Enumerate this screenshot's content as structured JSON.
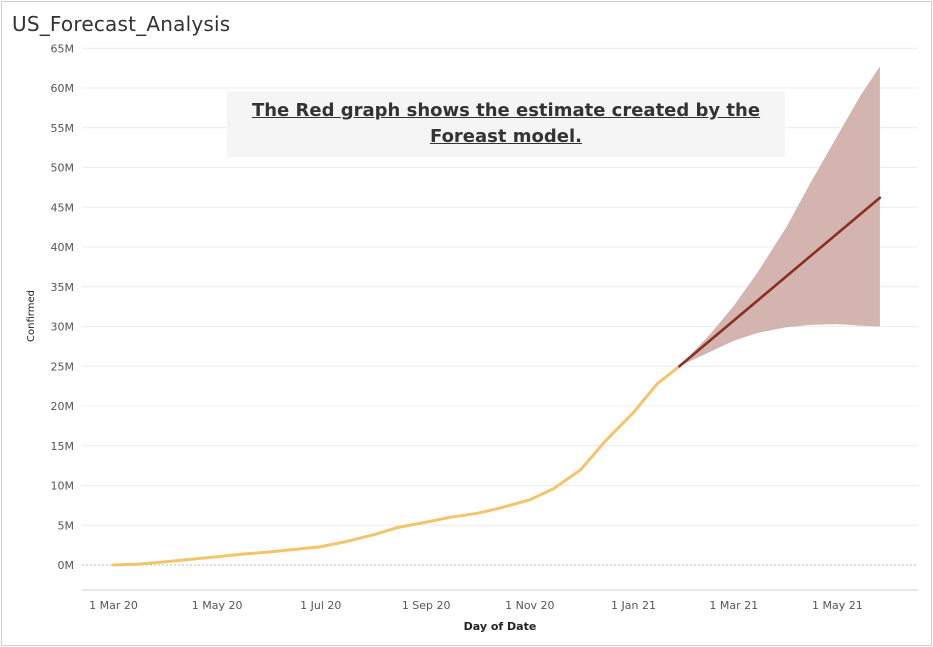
{
  "title": "US_Forecast_Analysis",
  "annotation": {
    "line1": "The Red graph shows the estimate created by the",
    "line2": "Foreast model."
  },
  "colors": {
    "actual": "#f2c56b",
    "forecast": "#8b2f24",
    "band": "#d2b0aa",
    "grid": "#ececec"
  },
  "chart_data": {
    "type": "line",
    "xlabel": "Day of Date",
    "ylabel": "Confirmed",
    "x_ticks": [
      "1 Mar 20",
      "1 May 20",
      "1 Jul 20",
      "1 Sep 20",
      "1 Nov 20",
      "1 Jan 21",
      "1 Mar 21",
      "1 May 21"
    ],
    "y_ticks": [
      "65M",
      "60M",
      "55M",
      "50M",
      "45M",
      "40M",
      "35M",
      "30M",
      "25M",
      "20M",
      "15M",
      "10M",
      "5M",
      "0M"
    ],
    "ylim": [
      -3000000,
      65000000
    ],
    "series": [
      {
        "kind": "actual",
        "points": [
          [
            "2020-03-01",
            0
          ],
          [
            "2020-03-15",
            100000
          ],
          [
            "2020-04-01",
            400000
          ],
          [
            "2020-04-15",
            700000
          ],
          [
            "2020-05-01",
            1050000
          ],
          [
            "2020-05-15",
            1350000
          ],
          [
            "2020-06-01",
            1650000
          ],
          [
            "2020-06-15",
            1950000
          ],
          [
            "2020-07-01",
            2300000
          ],
          [
            "2020-07-15",
            2900000
          ],
          [
            "2020-08-01",
            3800000
          ],
          [
            "2020-08-15",
            4700000
          ],
          [
            "2020-09-01",
            5400000
          ],
          [
            "2020-09-15",
            6000000
          ],
          [
            "2020-10-01",
            6500000
          ],
          [
            "2020-10-15",
            7200000
          ],
          [
            "2020-11-01",
            8200000
          ],
          [
            "2020-11-15",
            9600000
          ],
          [
            "2020-12-01",
            12000000
          ],
          [
            "2020-12-15",
            15500000
          ],
          [
            "2021-01-01",
            19200000
          ],
          [
            "2021-01-15",
            22800000
          ],
          [
            "2021-01-28",
            25000000
          ]
        ]
      },
      {
        "kind": "forecast",
        "points": [
          [
            "2021-01-28",
            25000000
          ],
          [
            "2021-05-26",
            46200000
          ]
        ]
      },
      {
        "kind": "band",
        "upper": [
          [
            "2021-01-28",
            25000000
          ],
          [
            "2021-02-15",
            29000000
          ],
          [
            "2021-03-01",
            32600000
          ],
          [
            "2021-03-15",
            36800000
          ],
          [
            "2021-04-01",
            42500000
          ],
          [
            "2021-04-15",
            48000000
          ],
          [
            "2021-05-01",
            54000000
          ],
          [
            "2021-05-15",
            59200000
          ],
          [
            "2021-05-26",
            62700000
          ]
        ],
        "lower": [
          [
            "2021-01-28",
            25000000
          ],
          [
            "2021-02-15",
            26800000
          ],
          [
            "2021-03-01",
            28200000
          ],
          [
            "2021-03-15",
            29200000
          ],
          [
            "2021-04-01",
            29900000
          ],
          [
            "2021-04-15",
            30200000
          ],
          [
            "2021-05-01",
            30300000
          ],
          [
            "2021-05-15",
            30100000
          ],
          [
            "2021-05-26",
            30000000
          ]
        ]
      }
    ]
  }
}
